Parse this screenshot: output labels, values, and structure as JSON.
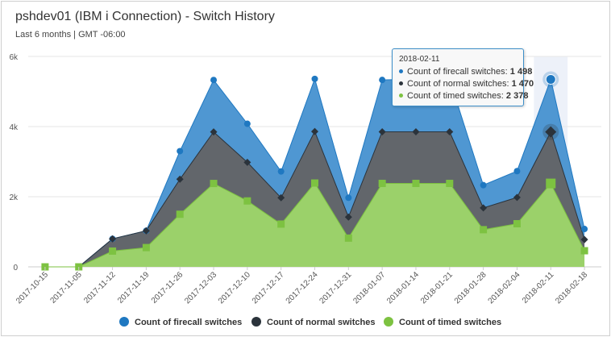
{
  "header": {
    "title": "pshdev01 (IBM i Connection) - Switch History",
    "subtitle": "Last 6 months | GMT -06:00"
  },
  "colors": {
    "firecall": "#1f78c1",
    "normal": "#2b333b",
    "timed": "#7dc241",
    "firecall_fill": "#4f97d2",
    "normal_fill": "#62666b",
    "timed_fill": "#9bd16a"
  },
  "tooltip": {
    "date": "2018-02-11",
    "rows": [
      {
        "label": "Count of firecall switches:",
        "value": "1 498"
      },
      {
        "label": "Count of normal switches:",
        "value": "1 470"
      },
      {
        "label": "Count of timed switches:",
        "value": "2 378"
      }
    ]
  },
  "chart_data": {
    "type": "area",
    "stacked": true,
    "x": [
      "2017-10-15",
      "2017-11-05",
      "2017-11-12",
      "2017-11-19",
      "2017-11-26",
      "2017-12-03",
      "2017-12-10",
      "2017-12-17",
      "2017-12-24",
      "2017-12-31",
      "2018-01-07",
      "2018-01-14",
      "2018-01-21",
      "2018-01-28",
      "2018-02-04",
      "2018-02-11",
      "2018-02-18"
    ],
    "series": [
      {
        "name": "Count of firecall switches",
        "values": [
          0,
          0,
          0,
          0,
          800,
          1480,
          1100,
          750,
          1500,
          550,
          1480,
          1500,
          1500,
          650,
          750,
          1498,
          300
        ]
      },
      {
        "name": "Count of normal switches",
        "values": [
          0,
          0,
          350,
          480,
          1000,
          1470,
          1100,
          750,
          1470,
          600,
          1470,
          1470,
          1470,
          620,
          750,
          1470,
          320
        ]
      },
      {
        "name": "Count of timed switches",
        "values": [
          0,
          0,
          450,
          550,
          1500,
          2378,
          1880,
          1220,
          2390,
          820,
          2380,
          2380,
          2380,
          1060,
          1230,
          2378,
          460
        ]
      }
    ],
    "yticks": [
      "0",
      "2k",
      "4k",
      "6k"
    ],
    "ylim": [
      0,
      6000
    ],
    "grid": true,
    "legend_position": "bottom",
    "highlighted_x": "2018-02-11"
  }
}
